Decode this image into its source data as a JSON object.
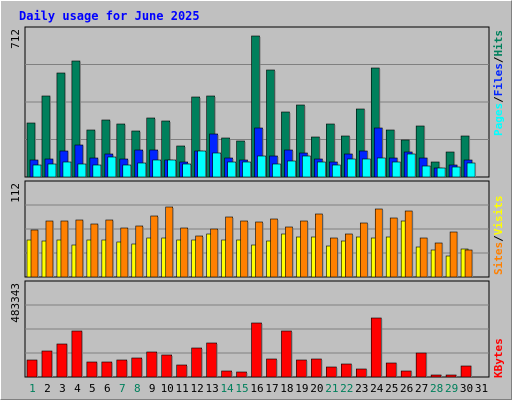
{
  "chart_data": {
    "type": "bar",
    "title": "Daily usage for June 2025",
    "categories": [
      "1",
      "2",
      "3",
      "4",
      "5",
      "6",
      "7",
      "8",
      "9",
      "10",
      "11",
      "12",
      "13",
      "14",
      "15",
      "16",
      "17",
      "18",
      "19",
      "20",
      "21",
      "22",
      "23",
      "24",
      "25",
      "26",
      "27",
      "28",
      "29",
      "30",
      "31"
    ],
    "weekend_days": [
      "1",
      "7",
      "8",
      "14",
      "15",
      "21",
      "22",
      "28",
      "29"
    ],
    "panels": [
      {
        "ylabel_max": "712",
        "ymax": 712,
        "series": [
          {
            "name": "Hits",
            "color": "#00805c",
            "values": [
              263,
              391,
              503,
              561,
              228,
              276,
              258,
              224,
              288,
              272,
              150,
              389,
              391,
              188,
              174,
              684,
              518,
              314,
              351,
              194,
              258,
              198,
              328,
              530,
              228,
              179,
              247,
              71,
              123,
              197,
              null
            ]
          },
          {
            "name": "Files",
            "color": "#0024ff",
            "values": [
              82,
              88,
              127,
              155,
              92,
              112,
              89,
              131,
              131,
              81,
              71,
              127,
              208,
              93,
              84,
              235,
              103,
              131,
              115,
              87,
              72,
              113,
              128,
              238,
              90,
              119,
              92,
              44,
              58,
              80,
              null
            ]
          },
          {
            "name": "Pages",
            "color": "#00ffff",
            "values": [
              60,
              61,
              72,
              65,
              58,
              95,
              60,
              66,
              80,
              80,
              61,
              127,
              114,
              73,
              71,
              104,
              61,
              76,
              102,
              75,
              58,
              87,
              86,
              90,
              73,
              113,
              51,
              43,
              47,
              69,
              null
            ]
          }
        ]
      },
      {
        "ylabel_max": "112",
        "ymax": 112,
        "series": [
          {
            "name": "Visits",
            "color": "#ffff00",
            "values": [
              44,
              43,
              44,
              39,
              44,
              44,
              42,
              40,
              47,
              47,
              44,
              45,
              52,
              44,
              44,
              38,
              43,
              52,
              48,
              48,
              37,
              43,
              48,
              47,
              48,
              68,
              36,
              32,
              25,
              34,
              null
            ]
          },
          {
            "name": "Sites",
            "color": "#ff8000",
            "values": [
              56,
              68,
              67,
              69,
              64,
              69,
              59,
              62,
              74,
              84,
              59,
              49,
              58,
              72,
              67,
              66,
              70,
              60,
              67,
              76,
              47,
              52,
              65,
              82,
              71,
              79,
              47,
              41,
              54,
              33,
              null
            ]
          }
        ]
      },
      {
        "ylabel_max": "483343",
        "ymax": 483343,
        "series": [
          {
            "name": "KBytes",
            "color": "#ff0000",
            "values": [
              90000,
              135000,
              170000,
              240000,
              80000,
              77000,
              87000,
              100000,
              130000,
              115000,
              60000,
              150000,
              175000,
              30000,
              26000,
              280000,
              95000,
              237000,
              90000,
              95000,
              53000,
              65000,
              40000,
              305000,
              75000,
              30000,
              125000,
              10000,
              10000,
              55000,
              null
            ]
          }
        ]
      }
    ],
    "legend_upper": [
      "Pages",
      "Files",
      "Hits"
    ],
    "legend_middle": [
      "Sites",
      "Visits"
    ],
    "legend_lower": [
      "KBytes"
    ],
    "legend_separator": "/"
  }
}
